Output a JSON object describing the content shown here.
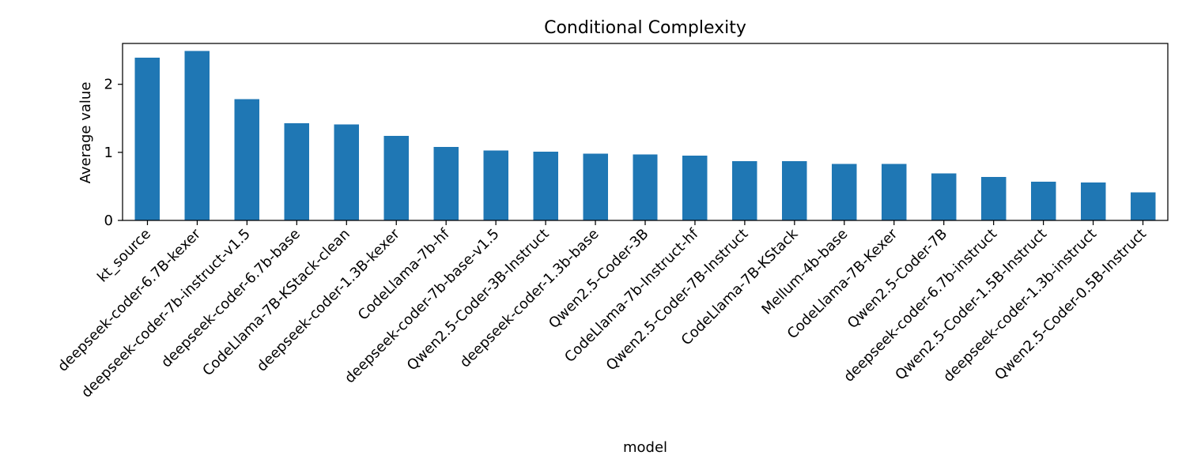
{
  "chart_data": {
    "type": "bar",
    "title": "Conditional Complexity",
    "xlabel": "model",
    "ylabel": "Average value",
    "ylim": [
      0,
      2.6
    ],
    "yticks": [
      0,
      1,
      2
    ],
    "grid": false,
    "bar_color": "#1f77b4",
    "categories": [
      "kt_source",
      "deepseek-coder-6.7B-kexer",
      "deepseek-coder-7b-instruct-v1.5",
      "deepseek-coder-6.7b-base",
      "CodeLlama-7B-KStack-clean",
      "deepseek-coder-1.3B-kexer",
      "CodeLlama-7b-hf",
      "deepseek-coder-7b-base-v1.5",
      "Qwen2.5-Coder-3B-Instruct",
      "deepseek-coder-1.3b-base",
      "Qwen2.5-Coder-3B",
      "CodeLlama-7b-Instruct-hf",
      "Qwen2.5-Coder-7B-Instruct",
      "CodeLlama-7B-KStack",
      "Mellum-4b-base",
      "CodeLlama-7B-Kexer",
      "Qwen2.5-Coder-7B",
      "deepseek-coder-6.7b-instruct",
      "Qwen2.5-Coder-1.5B-Instruct",
      "deepseek-coder-1.3b-instruct",
      "Qwen2.5-Coder-0.5B-Instruct"
    ],
    "values": [
      2.39,
      2.49,
      1.78,
      1.43,
      1.41,
      1.24,
      1.08,
      1.03,
      1.01,
      0.98,
      0.97,
      0.95,
      0.87,
      0.87,
      0.83,
      0.83,
      0.69,
      0.64,
      0.57,
      0.56,
      0.41
    ]
  }
}
